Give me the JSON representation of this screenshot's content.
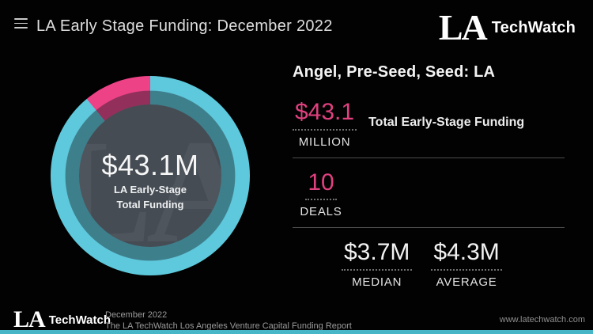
{
  "colors": {
    "background": "#020202",
    "pink": "#e0417f",
    "teal": "#5ec9dc",
    "accent_bar": "#47b7c8",
    "donut_center": "#454c54"
  },
  "header": {
    "title": "LA Early Stage Funding: December 2022",
    "menu_icon": "hamburger-menu"
  },
  "brand": {
    "mark": "LA",
    "name": "TechWatch"
  },
  "chart_data": {
    "type": "pie",
    "title": "Angel, Pre-Seed, Seed: LA",
    "center_value": "$43.1M",
    "center_label": [
      "LA Early-Stage",
      "Total Funding"
    ],
    "watermark": "LA",
    "slices": [
      {
        "label": "segment-teal",
        "percent": 89,
        "color": "#5ec9dc"
      },
      {
        "label": "segment-pink",
        "percent": 11,
        "color": "#ee4287"
      }
    ],
    "legend": "none",
    "stats": {
      "total_funding": "$43.1 MILLION",
      "deals": 10,
      "median": "$3.7M",
      "average": "$4.3M"
    }
  },
  "stats_panel": {
    "heading": "Angel, Pre-Seed, Seed: LA",
    "primary": [
      {
        "value": "$43.1",
        "unit": "MILLION",
        "description": "Total Early-Stage Funding"
      },
      {
        "value": "10",
        "unit": "DEALS",
        "description": ""
      }
    ],
    "secondary": [
      {
        "value": "$3.7M",
        "label": "MEDIAN"
      },
      {
        "value": "$4.3M",
        "label": "AVERAGE"
      }
    ]
  },
  "footer": {
    "date_line": "December 2022",
    "report_line": "The LA TechWatch Los Angeles Venture Capital Funding Report",
    "website": "www.latechwatch.com"
  }
}
